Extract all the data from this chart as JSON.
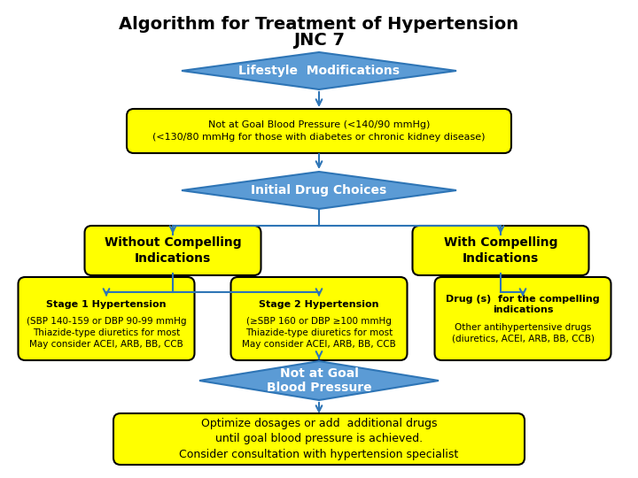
{
  "title_line1": "Algorithm for Treatment of Hypertension",
  "title_line2": "JNC 7",
  "bg_color": "#ffffff",
  "blue": "#5B9BD5",
  "blue_edge": "#2E75B6",
  "yellow": "#FFFF00",
  "black": "#000000",
  "title_fs": 14,
  "lifestyle_text": "Lifestyle  Modifications",
  "notgoal1_text": "Not at Goal Blood Pressure (<140/90 mmHg)\n(<130/80 mmHg for those with diabetes or chronic kidney disease)",
  "initial_text": "Initial Drug Choices",
  "without_text": "Without Compelling\nIndications",
  "with_text": "With Compelling\nIndications",
  "stage1_title": "Stage 1 Hypertension",
  "stage1_body": "(SBP 140-159 or DBP 90-99 mmHg\nThiazide-type diuretics for most\nMay consider ACEI, ARB, BB, CCB",
  "stage2_title": "Stage 2 Hypertension",
  "stage2_body": "(≥SBP 160 or DBP ≥100 mmHg\nThiazide-type diuretics for most\nMay consider ACEI, ARB, BB, CCB",
  "drug_title": "Drug (s)  for the compelling\nindications",
  "drug_body": "Other antihypertensive drugs\n(diuretics, ACEI, ARB, BB, CCB)",
  "notgoal2_text": "Not at Goal\nBlood Pressure",
  "optimize_text": "Optimize dosages or add  additional drugs\nuntil goal blood pressure is achieved.\nConsider consultation with hypertension specialist"
}
